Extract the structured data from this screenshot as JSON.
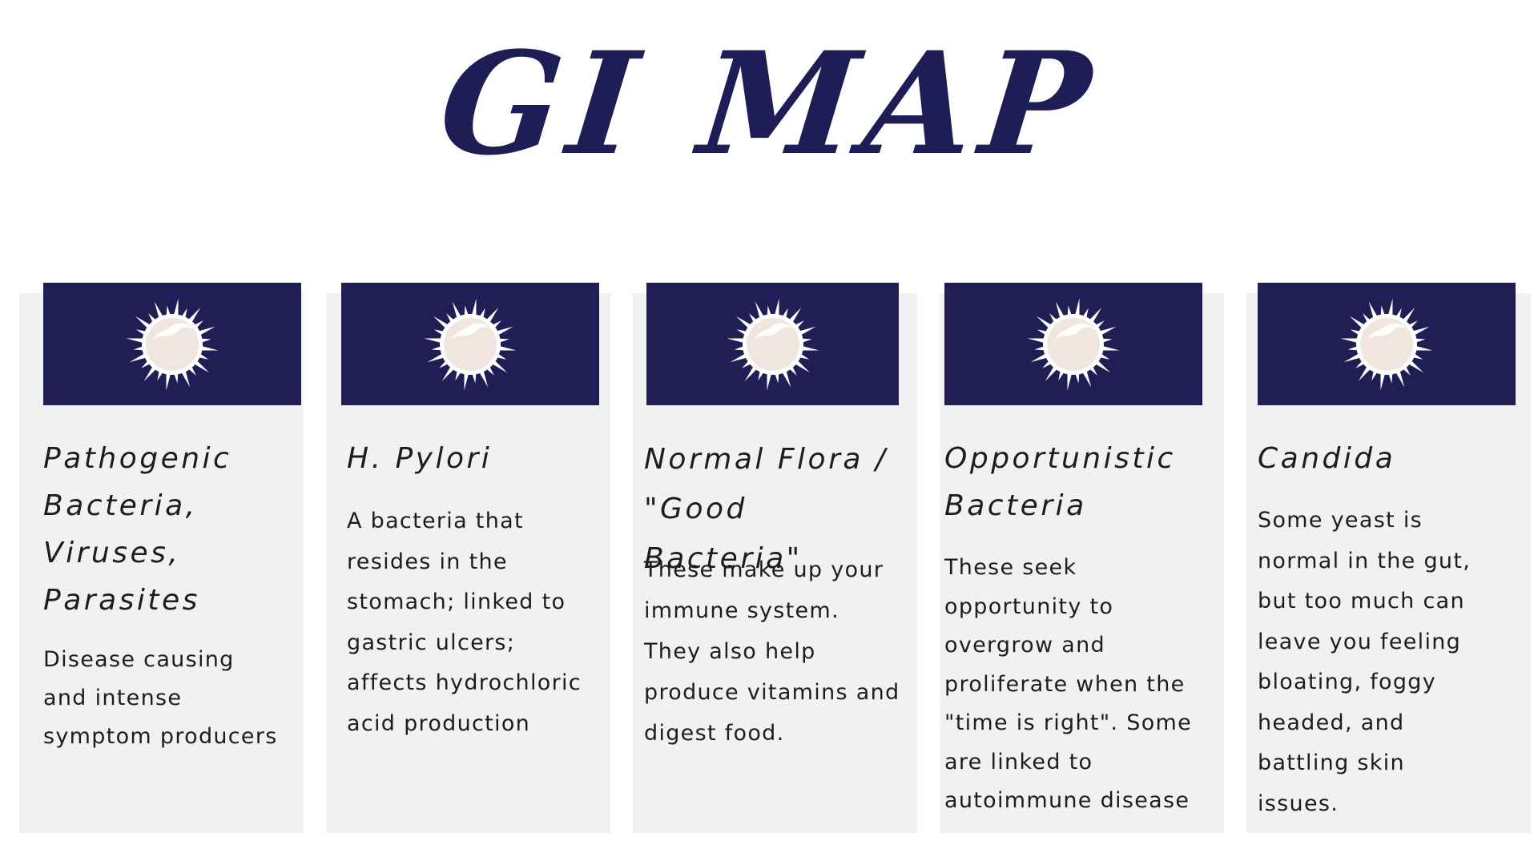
{
  "title": "GI MAP",
  "colors": {
    "title": "#1f1d55",
    "header_bg": "#201e54",
    "card_bg": "#f1f1f3",
    "microbe_core": "#f1e6df",
    "microbe_rays": "#ffffff"
  },
  "icon": "microbe-icon",
  "cards": [
    {
      "heading": "Pathogenic Bacteria, Viruses, Parasites",
      "body": "Disease causing and intense symptom producers"
    },
    {
      "heading": "H. Pylori",
      "body": "A bacteria that resides in the stomach; linked to gastric ulcers; affects hydrochloric acid production"
    },
    {
      "heading": "Normal Flora / \"Good Bacteria\"",
      "body": "These make up your immune system. They also help produce vitamins and digest food."
    },
    {
      "heading": "Opportunistic Bacteria",
      "body": "These seek opportunity to overgrow and proliferate when the \"time is right\". Some are linked to autoimmune disease"
    },
    {
      "heading": "Candida",
      "body": "Some yeast is normal in the gut, but too much can leave you feeling bloating, foggy headed, and battling skin issues."
    }
  ]
}
